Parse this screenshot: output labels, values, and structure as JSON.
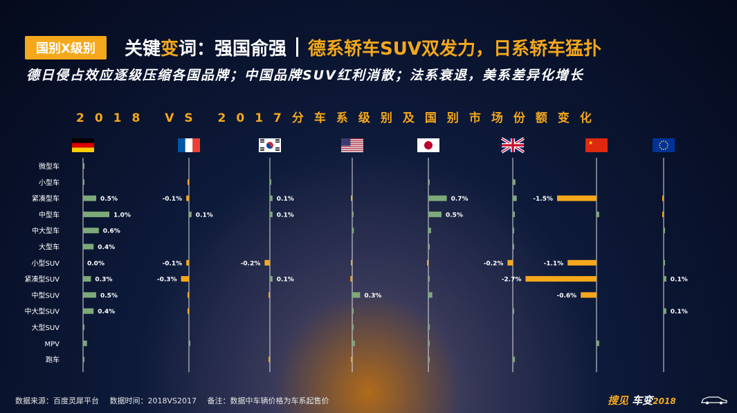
{
  "header": {
    "tag": "国别X级别",
    "title_part1": "关键",
    "title_hl": "变",
    "title_part2": "词：强国俞强",
    "title_part3": "德系轿车SUV双发力，日系轿车猛扑"
  },
  "subtitle": "德日侵占效应逐级压缩各国品牌；中国品牌SUV红利消散；法系衰退，美系差异化增长",
  "footer": {
    "source": "数据来源：百度灵犀平台",
    "time": "数据时间：2018VS2017",
    "note": "备注：数据中车辆价格为车系起售价"
  },
  "brand": {
    "b1": "搜见",
    "b2": "车变",
    "b3": "2018"
  },
  "colors": {
    "positive": "#7ea97a",
    "negative": "#f5a81c",
    "axis": "#e0e0e0"
  },
  "chart_data": {
    "type": "bar",
    "orientation": "horizontal",
    "title": "2018 VS 2017分车系级别及国别市场份额变化",
    "categories": [
      "微型车",
      "小型车",
      "紧凑型车",
      "中型车",
      "中大型车",
      "大型车",
      "小型SUV",
      "紧凑型SUV",
      "中型SUV",
      "中大型SUV",
      "大型SUV",
      "MPV",
      "跑车"
    ],
    "series": [
      {
        "flag": "germany-flag-icon",
        "values": [
          0.01,
          0.03,
          0.5,
          1.0,
          0.6,
          0.4,
          0.0,
          0.3,
          0.5,
          0.4,
          0.01,
          0.15,
          0.03
        ],
        "labels": [
          "",
          "",
          "0.5%",
          "1.0%",
          "0.6%",
          "0.4%",
          "0.0%",
          "0.3%",
          "0.5%",
          "0.4%",
          "",
          "",
          ""
        ]
      },
      {
        "flag": "france-flag-icon",
        "values": [
          0,
          -0.01,
          -0.1,
          0.1,
          0,
          0,
          -0.1,
          -0.3,
          -0.03,
          -0.01,
          0,
          0.01,
          0
        ],
        "labels": [
          "",
          "",
          "-0.1%",
          "0.1%",
          "",
          "",
          "-0.1%",
          "-0.3%",
          "",
          "",
          "",
          "",
          ""
        ]
      },
      {
        "flag": "korea-flag-icon",
        "values": [
          0,
          0.05,
          0.1,
          0.1,
          0,
          0,
          -0.2,
          0.1,
          -0.05,
          0,
          0,
          0,
          -0.01
        ],
        "labels": [
          "",
          "",
          "0.1%",
          "0.1%",
          "",
          "",
          "-0.2%",
          "0.1%",
          "",
          "",
          "",
          "",
          ""
        ]
      },
      {
        "flag": "usa-flag-icon",
        "values": [
          0,
          0,
          -0.04,
          0.03,
          0.06,
          0,
          -0.05,
          -0.07,
          0.3,
          0.01,
          0.05,
          0.1,
          -0.02
        ],
        "labels": [
          "",
          "",
          "",
          "",
          "",
          "",
          "",
          "",
          "0.3%",
          "",
          "",
          "",
          ""
        ]
      },
      {
        "flag": "japan-flag-icon",
        "values": [
          0,
          0.05,
          0.7,
          0.5,
          0.1,
          0.01,
          -0.02,
          0.01,
          0.15,
          0,
          0.01,
          0.05,
          0.01
        ],
        "labels": [
          "",
          "",
          "0.7%",
          "0.5%",
          "",
          "",
          "",
          "",
          "",
          "",
          "",
          "",
          ""
        ]
      },
      {
        "flag": "uk-flag-icon",
        "values": [
          0,
          0.1,
          0.15,
          0.08,
          0.05,
          0.02,
          -0.2,
          0,
          0,
          0.02,
          0,
          0,
          0.08
        ],
        "labels": [
          "",
          "",
          "",
          "",
          "",
          "",
          "-0.2%",
          "",
          "",
          "",
          "",
          "",
          ""
        ]
      },
      {
        "flag": "china-flag-icon",
        "values": [
          0,
          0,
          -1.5,
          0.1,
          0,
          0,
          -1.1,
          -2.7,
          -0.6,
          0,
          0,
          0.1,
          0
        ],
        "labels": [
          "",
          "",
          "-1.5%",
          "",
          "",
          "",
          "-1.1%",
          "-2.7%",
          "-0.6%",
          "",
          "",
          "",
          ""
        ]
      },
      {
        "flag": "eu-flag-icon",
        "values": [
          0,
          0,
          -0.04,
          -0.02,
          0.01,
          0,
          0.01,
          0.1,
          0,
          0.1,
          0,
          0,
          0
        ],
        "labels": [
          "",
          "",
          "",
          "",
          "",
          "",
          "",
          "0.1%",
          "",
          "0.1%",
          "",
          "",
          ""
        ]
      }
    ]
  }
}
